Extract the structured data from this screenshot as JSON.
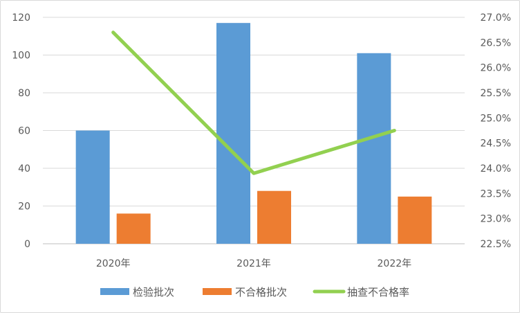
{
  "chart_data": {
    "type": "bar",
    "categories": [
      "2020年",
      "2021年",
      "2022年"
    ],
    "series": [
      {
        "name": "检验批次",
        "kind": "bar",
        "axis": "left",
        "color": "#5b9bd5",
        "values": [
          60,
          117,
          101
        ]
      },
      {
        "name": "不合格批次",
        "kind": "bar",
        "axis": "left",
        "color": "#ed7d31",
        "values": [
          16,
          28,
          25
        ]
      },
      {
        "name": "抽查不合格率",
        "kind": "line",
        "axis": "right",
        "color": "#92d050",
        "values": [
          26.7,
          23.9,
          24.75
        ]
      }
    ],
    "y_left": {
      "min": 0,
      "max": 120,
      "step": 20,
      "ticks": [
        "0",
        "20",
        "40",
        "60",
        "80",
        "100",
        "120"
      ]
    },
    "y_right": {
      "min": 22.5,
      "max": 27.0,
      "step": 0.5,
      "ticks": [
        "22.5%",
        "23.0%",
        "23.5%",
        "24.0%",
        "24.5%",
        "25.0%",
        "25.5%",
        "26.0%",
        "26.5%",
        "27.0%"
      ]
    },
    "grid": true,
    "legend_position": "bottom",
    "title": ""
  }
}
